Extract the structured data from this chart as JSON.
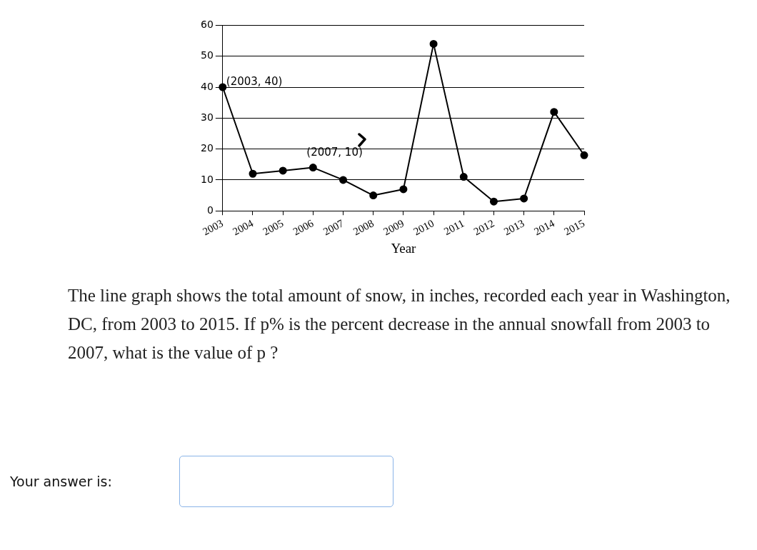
{
  "chart_data": {
    "type": "line",
    "xlabel": "Year",
    "categories": [
      "2003",
      "2004",
      "2005",
      "2006",
      "2007",
      "2008",
      "2009",
      "2010",
      "2011",
      "2012",
      "2013",
      "2014",
      "2015"
    ],
    "values": [
      40,
      12,
      13,
      14,
      10,
      5,
      7,
      54,
      11,
      3,
      4,
      32,
      18
    ],
    "color": "#000000",
    "marker": "circle",
    "line_style": "solid",
    "grid": "y",
    "legend": false,
    "ylim": [
      0,
      60
    ],
    "yticks": [
      0,
      10,
      20,
      30,
      40,
      50,
      60
    ],
    "annotations": [
      {
        "text": "(2003, 40)",
        "x": "2003",
        "y": 40
      },
      {
        "text": "(2007, 10)",
        "x": "2007",
        "y": 10
      },
      "The line graph shows the total amount of snow, in inches, recorded each year in Washington, DC, from 2003 to 2015. If p% is the percent decrease in the annual snowfall from 2003 to 2007, what is the value of p ?",
      "Your answer is:"
    ]
  }
}
